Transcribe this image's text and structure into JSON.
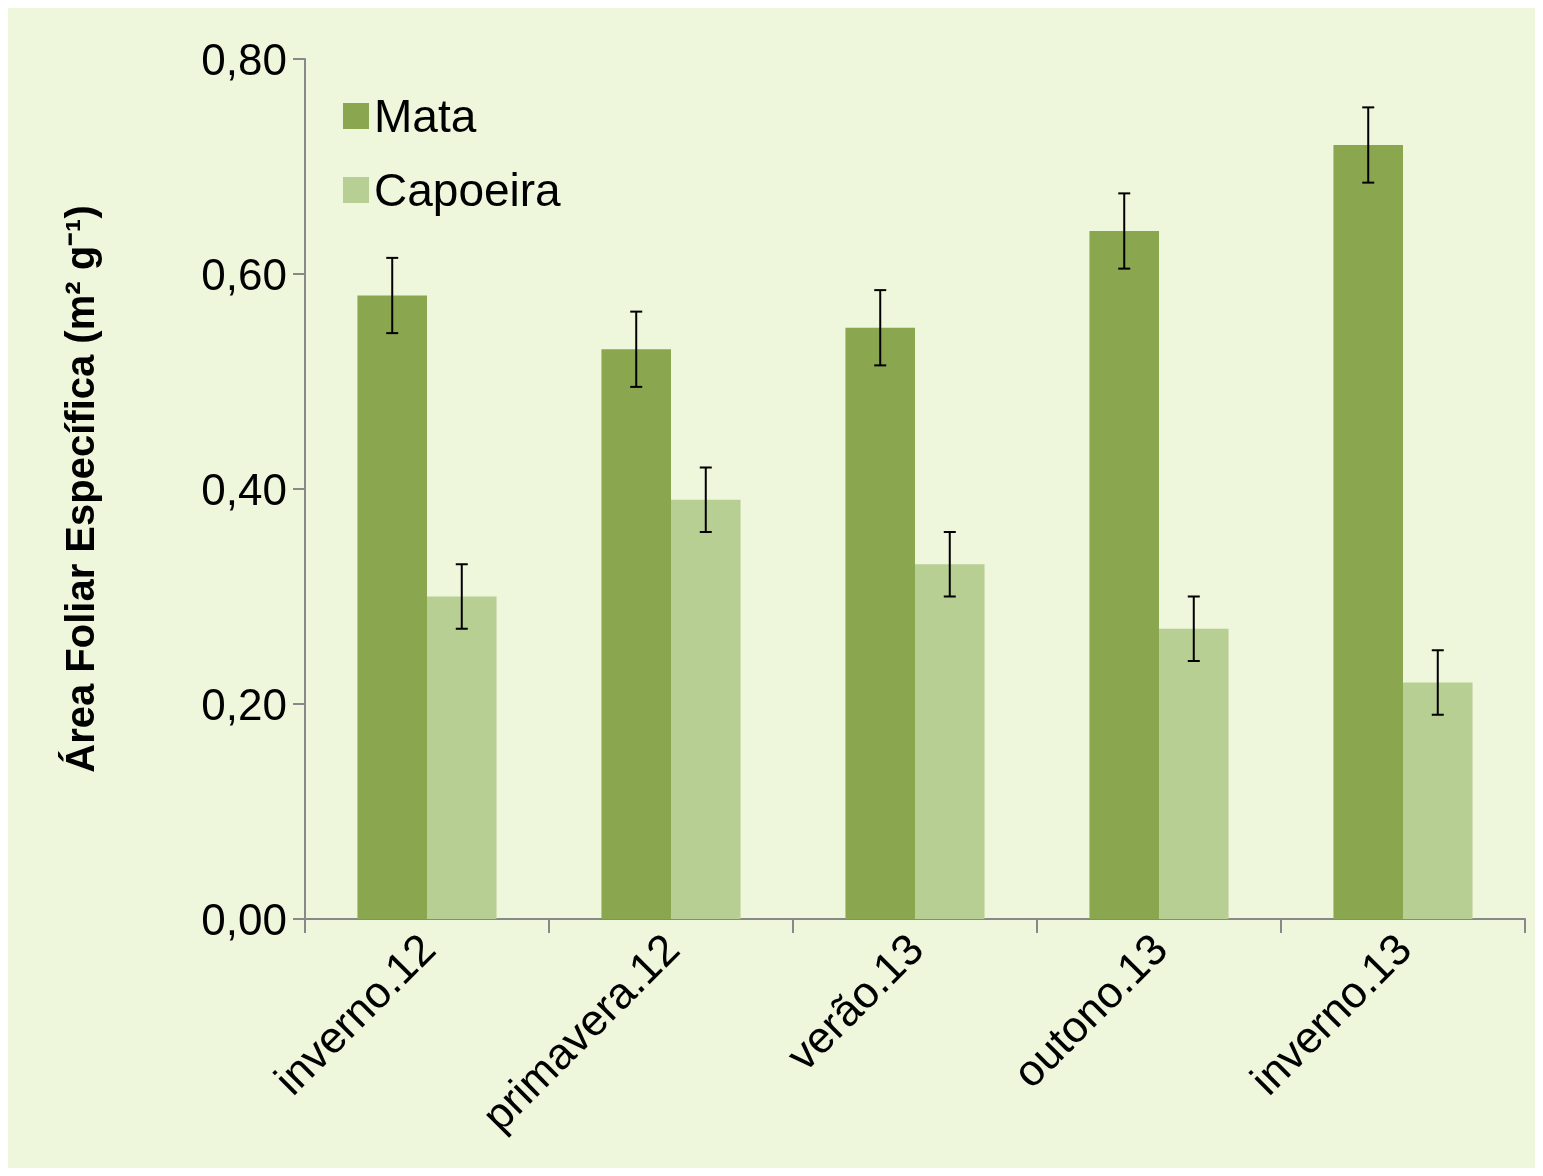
{
  "chart_data": {
    "type": "bar",
    "ylabel": "Área Foliar Específica (m² g⁻¹)",
    "categories": [
      "inverno.12",
      "primavera.12",
      "verão.13",
      "outono.13",
      "inverno.13"
    ],
    "series": [
      {
        "name": "Mata",
        "color": "#8aa64e",
        "values": [
          0.58,
          0.53,
          0.55,
          0.64,
          0.72
        ],
        "errors": [
          0.035,
          0.035,
          0.035,
          0.035,
          0.035
        ]
      },
      {
        "name": "Capoeira",
        "color": "#b8cf94",
        "values": [
          0.3,
          0.39,
          0.33,
          0.27,
          0.22
        ],
        "errors": [
          0.03,
          0.03,
          0.03,
          0.03,
          0.03
        ]
      }
    ],
    "ylim": [
      0,
      0.8
    ],
    "yticks": [
      {
        "value": 0,
        "label": "0,00"
      },
      {
        "value": 0.2,
        "label": "0,20"
      },
      {
        "value": 0.4,
        "label": "0,40"
      },
      {
        "value": 0.6,
        "label": "0,60"
      },
      {
        "value": 0.8,
        "label": "0,80"
      }
    ],
    "grid": false,
    "legend": "top left"
  }
}
